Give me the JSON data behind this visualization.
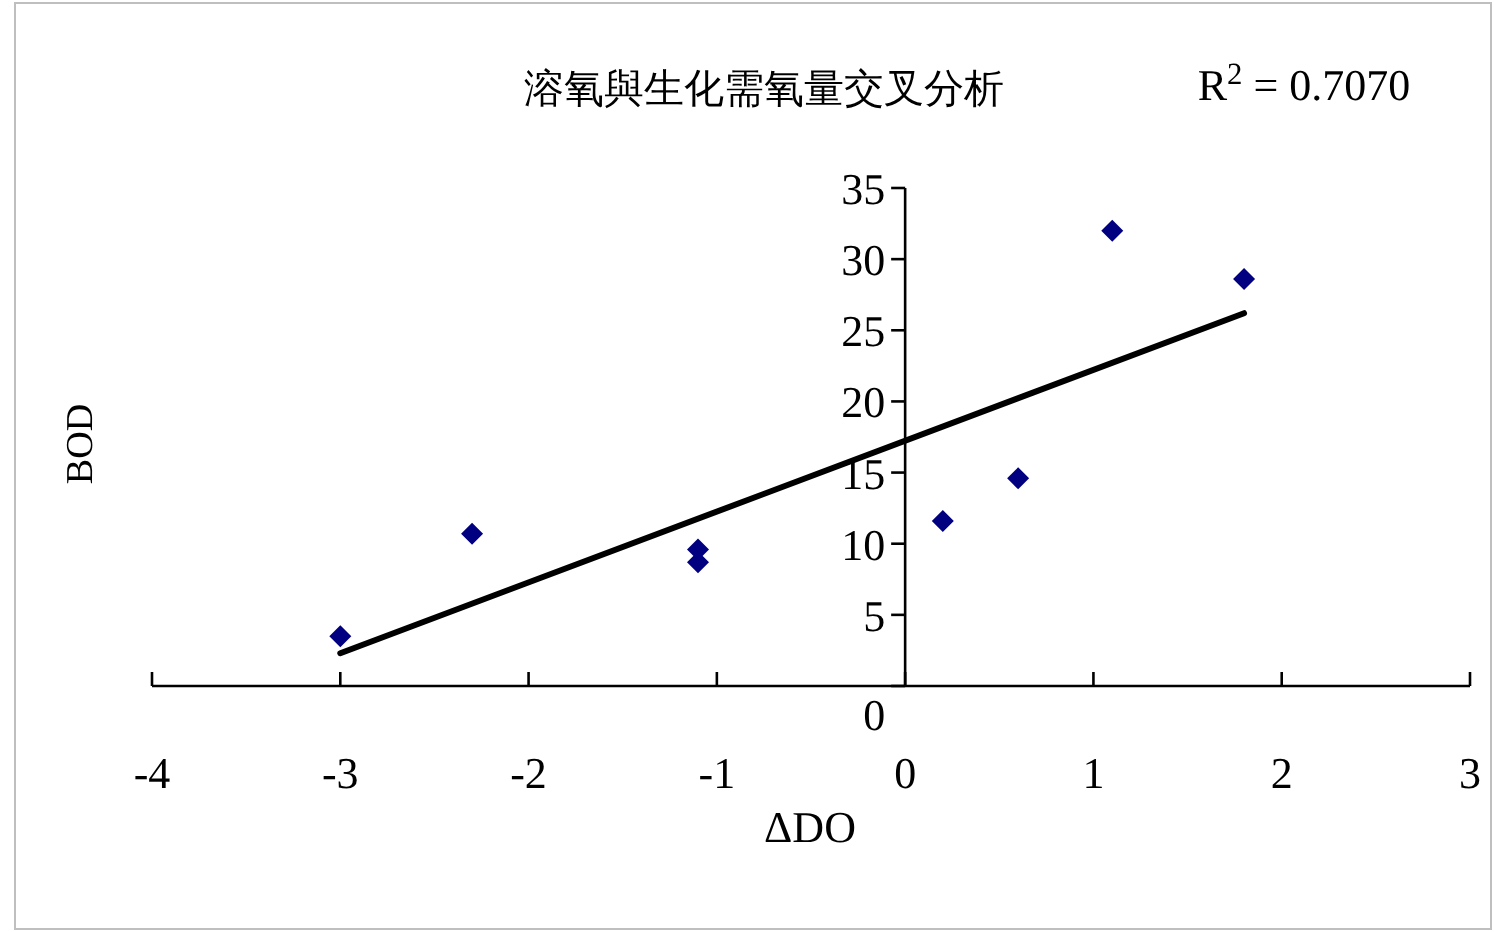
{
  "chart_data": {
    "type": "scatter",
    "title": "溶氧與生化需氧量交叉分析",
    "xlabel": "ΔDO",
    "ylabel": "BOD",
    "annotations": [
      "R$^{2}$ = 0.7070"
    ],
    "xlim": [
      -4,
      3
    ],
    "xticks": [
      -4,
      -3,
      -2,
      -1,
      0,
      1,
      2,
      3
    ],
    "ylim": [
      0,
      35
    ],
    "yticks": [
      0,
      5,
      10,
      15,
      20,
      25,
      30,
      35
    ],
    "grid": false,
    "series": [
      {
        "color": "#000080",
        "marker": "diamond",
        "x": [
          -3,
          -2.3,
          -1.1,
          -1.1,
          0.2,
          0.6,
          1.1,
          1.8
        ],
        "values": [
          3.5,
          10.7,
          9.6,
          8.7,
          11.6,
          14.6,
          32.0,
          28.6
        ]
      },
      {
        "type": "line",
        "color": "#000000",
        "marker": "none",
        "line_style": "solid",
        "x": [
          -3,
          1.8
        ],
        "values": [
          2.3,
          26.2
        ]
      }
    ]
  }
}
